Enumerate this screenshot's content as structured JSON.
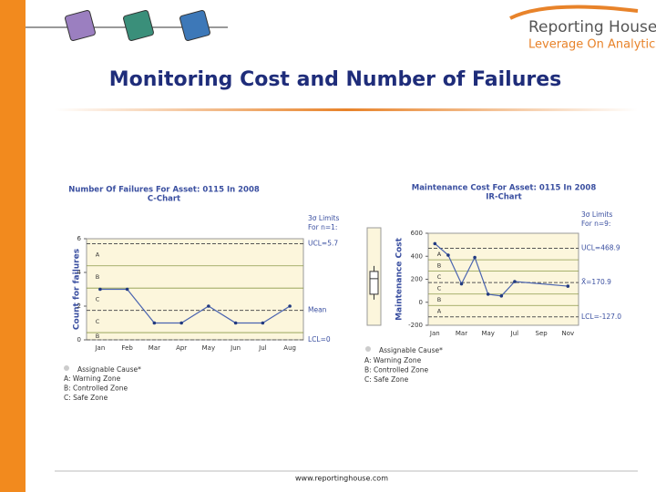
{
  "slide": {
    "title": "Monitoring Cost and Number of Failures",
    "footer": "www.reportinghouse.com",
    "logo": {
      "name": "Reporting House",
      "tagline": "Leverage On Analytics"
    }
  },
  "chart_data": [
    {
      "type": "line",
      "title": "Number Of Failures For Asset:   0115   In 2008",
      "subtitle": "C-Chart",
      "y_label": "Count for failures",
      "categories": [
        "Jan",
        "Feb",
        "Mar",
        "Apr",
        "May",
        "Jun",
        "Jul",
        "Aug"
      ],
      "values": [
        3,
        3,
        1,
        1,
        2,
        1,
        1,
        2
      ],
      "color": "#4a64b0",
      "ylim": [
        0,
        6
      ],
      "yticks": [
        0,
        2,
        4,
        6
      ],
      "limits_title": [
        "3σ Limits",
        "For n=1:"
      ],
      "limits": [
        {
          "value": 5.7,
          "label": "UCL=5.7"
        },
        {
          "value": 1.75,
          "label": "Mean"
        },
        {
          "value": 0,
          "label": "LCL=0"
        }
      ],
      "zone_lines": [
        4.39,
        3.07,
        0.43
      ],
      "zone_labels": [
        "A",
        "B",
        "C",
        "C",
        "B"
      ],
      "legend": {
        "marker": "Assignable Cause*",
        "items": [
          "A: Warning Zone",
          "B: Controlled Zone",
          "C: Safe Zone"
        ]
      }
    },
    {
      "type": "line",
      "title": "Maintenance Cost For Asset:   0115   In 2008",
      "subtitle": "IR-Chart",
      "y_label": "Maintenance Cost",
      "x": [
        1,
        2,
        3,
        4,
        5,
        6,
        7,
        11
      ],
      "values": [
        510,
        410,
        160,
        390,
        70,
        55,
        180,
        140
      ],
      "color": "#4a64b0",
      "xlim": [
        0.5,
        11.8
      ],
      "xticks": [
        {
          "value": 1,
          "label": "Jan"
        },
        {
          "value": 3,
          "label": "Mar"
        },
        {
          "value": 5,
          "label": "May"
        },
        {
          "value": 7,
          "label": "Jul"
        },
        {
          "value": 9,
          "label": "Sep"
        },
        {
          "value": 11,
          "label": "Nov"
        }
      ],
      "ylim": [
        -200,
        600
      ],
      "yticks": [
        -200,
        0,
        200,
        400,
        600
      ],
      "limits_title": [
        "3σ Limits",
        "For n=9:"
      ],
      "limits": [
        {
          "value": 468.9,
          "label": "UCL=468.9"
        },
        {
          "value": 170.9,
          "label": "X̄=170.9"
        },
        {
          "value": -127.0,
          "label": "LCL=-127.0"
        }
      ],
      "zone_lines": [
        369.6,
        270.3,
        71.5,
        -27.8
      ],
      "zone_labels": [
        "A",
        "B",
        "C",
        "C",
        "B",
        "A"
      ],
      "box": {
        "q1": 70,
        "median": 205,
        "q3": 268
      },
      "legend": {
        "marker": "Assignable Cause*",
        "items": [
          "A: Warning Zone",
          "B: Controlled Zone",
          "C: Safe Zone"
        ]
      }
    }
  ]
}
